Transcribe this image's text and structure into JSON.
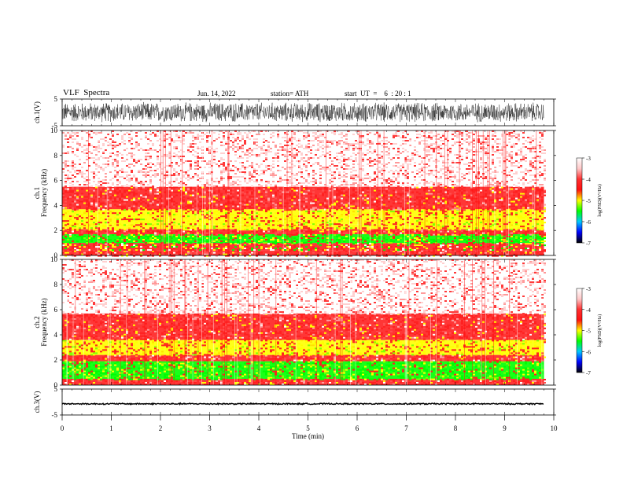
{
  "header": {
    "title": "VLF  Spectra",
    "date": "Jun. 14, 2022",
    "station": "station= ATH",
    "start": "start  UT  =    6  : 20 : 1"
  },
  "colorbar": {
    "label": "log(PSD)(V²/Hz)",
    "ticks": [
      "-3",
      "-4",
      "-5",
      "-6",
      "-7"
    ],
    "colors": [
      "#ffffff",
      "#ffc8c8",
      "#ff3030",
      "#ff1010",
      "#ffff00",
      "#00ff00",
      "#00c8ff",
      "#0000ff",
      "#000000"
    ]
  },
  "chart_data": [
    {
      "type": "line",
      "panel": "ch1-waveform",
      "ylabel": "ch.1(V)",
      "ylim": [
        -5,
        5
      ],
      "yticks": [
        "5",
        "-5"
      ],
      "xlim": [
        0,
        10
      ],
      "signal_amplitude": 4,
      "trace_end": 9.8
    },
    {
      "type": "heatmap",
      "panel": "ch1-spectrogram",
      "ylabel": "ch.1\nFrequency  (kHz)",
      "ylim": [
        0,
        10
      ],
      "yticks": [
        "0",
        "2",
        "4",
        "6",
        "8",
        "10"
      ],
      "xlim": [
        0,
        10
      ],
      "trace_end": 9.8,
      "bands": [
        {
          "from": 0,
          "to": 0.4,
          "level": "red"
        },
        {
          "from": 0.4,
          "to": 1.0,
          "level": "mixed"
        },
        {
          "from": 1.0,
          "to": 1.7,
          "level": "green"
        },
        {
          "from": 1.7,
          "to": 2.1,
          "level": "red"
        },
        {
          "from": 2.1,
          "to": 2.5,
          "level": "yellow"
        },
        {
          "from": 2.5,
          "to": 3.7,
          "level": "yellow"
        },
        {
          "from": 3.7,
          "to": 5.5,
          "level": "red"
        },
        {
          "from": 5.5,
          "to": 10,
          "level": "pink"
        }
      ]
    },
    {
      "type": "heatmap",
      "panel": "ch2-spectrogram",
      "ylabel": "ch.2\nFrequency  (kHz)",
      "ylim": [
        0,
        10
      ],
      "yticks": [
        "0",
        "2",
        "4",
        "6",
        "8",
        "10"
      ],
      "xlim": [
        0,
        10
      ],
      "trace_end": 9.8,
      "bands": [
        {
          "from": 0,
          "to": 0.5,
          "level": "red"
        },
        {
          "from": 0.5,
          "to": 1.9,
          "level": "green"
        },
        {
          "from": 1.9,
          "to": 2.4,
          "level": "red"
        },
        {
          "from": 2.4,
          "to": 3.6,
          "level": "yellow"
        },
        {
          "from": 3.6,
          "to": 5.7,
          "level": "red"
        },
        {
          "from": 5.7,
          "to": 10,
          "level": "pink"
        }
      ]
    },
    {
      "type": "line",
      "panel": "ch3-waveform",
      "ylabel": "ch.3(V)",
      "ylim": [
        -5,
        5
      ],
      "yticks": [
        "5",
        "-5"
      ],
      "xlim": [
        0,
        10
      ],
      "signal_amplitude": 0.3,
      "signal_offset": -0.7,
      "trace_end": 9.8
    }
  ],
  "xaxis": {
    "label": "Time  (min)",
    "ticks": [
      "0",
      "1",
      "2",
      "3",
      "4",
      "5",
      "6",
      "7",
      "8",
      "9",
      "10"
    ]
  }
}
